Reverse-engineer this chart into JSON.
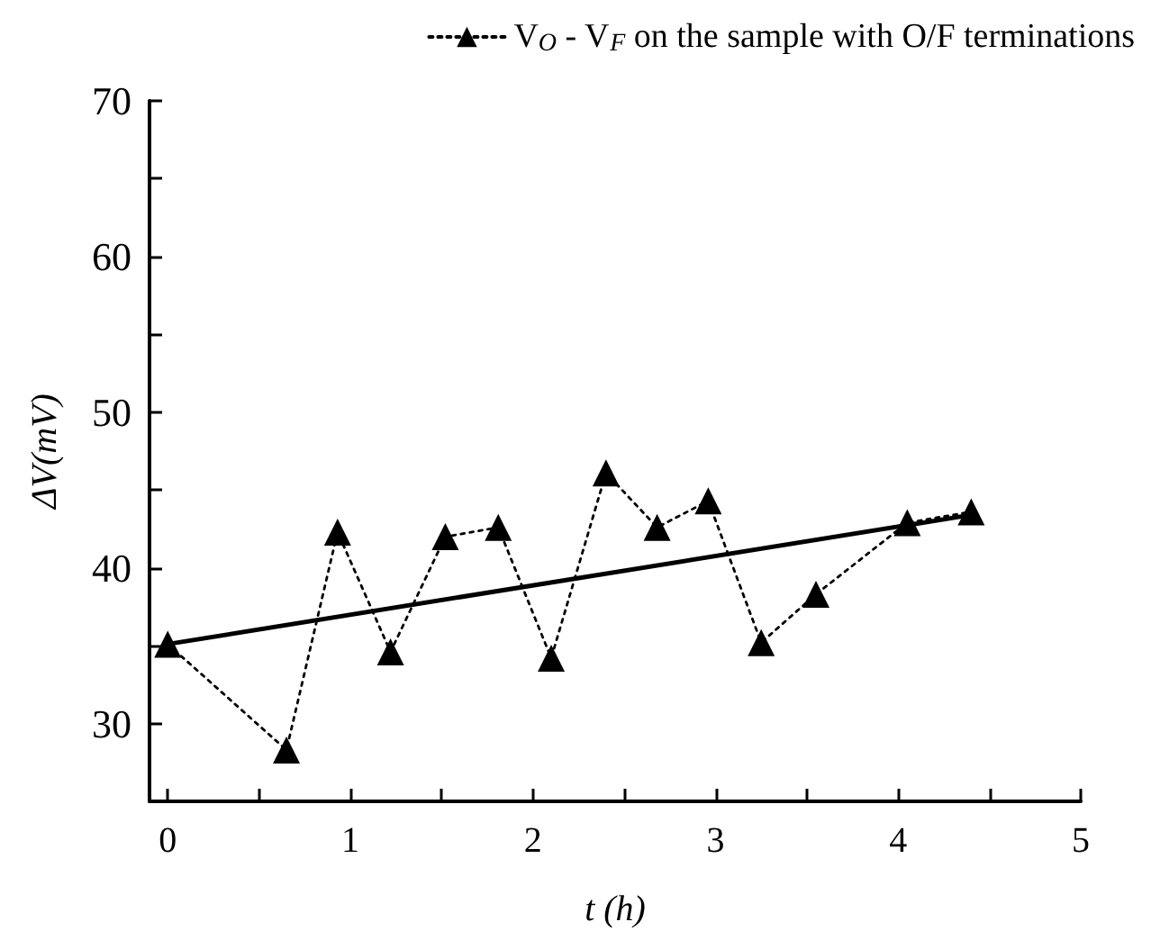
{
  "chart_data": {
    "type": "line",
    "xlabel": "t (h)",
    "ylabel": "ΔV(mV)",
    "xlim": [
      -0.1,
      5
    ],
    "ylim": [
      25,
      70
    ],
    "xticks": [
      0,
      {
        "value": 0.5,
        "label": null
      },
      1,
      {
        "value": 1.5,
        "label": null
      },
      2,
      {
        "value": 2.5,
        "label": null
      },
      3,
      {
        "value": 3.5,
        "label": null
      },
      4,
      {
        "value": 4.5,
        "label": null
      },
      5
    ],
    "yticks": [
      30,
      {
        "value": 35,
        "label": null
      },
      40,
      {
        "value": 45,
        "label": null
      },
      50,
      {
        "value": 55,
        "label": null
      },
      60,
      {
        "value": 65,
        "label": null
      },
      70
    ],
    "grid": false,
    "legend": "top right",
    "series": [
      {
        "name": "V$_{O}$ - V$_{F}$ on the sample with O/F terminations",
        "color": "#000000",
        "marker": "triangle",
        "line_style": "dotted",
        "x": [
          0,
          0.65,
          0.93,
          1.22,
          1.52,
          1.81,
          2.1,
          2.4,
          2.68,
          2.96,
          3.25,
          3.55,
          4.05,
          4.4
        ],
        "values": [
          35.1,
          28.3,
          42.3,
          34.6,
          42,
          42.6,
          34.2,
          46.1,
          42.6,
          44.3,
          35.2,
          38.3,
          42.9,
          43.6
        ]
      },
      {
        "type": "line",
        "color": "#000000",
        "marker": "none",
        "line_style": "solid",
        "x": [
          0,
          4.4
        ],
        "values": [
          35.1,
          43.4
        ]
      }
    ]
  }
}
